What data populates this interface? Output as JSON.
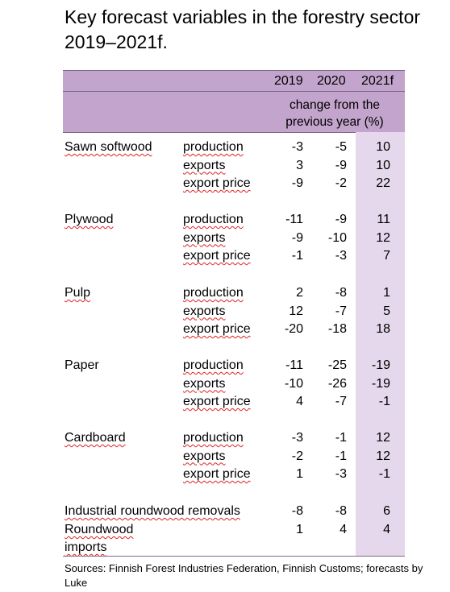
{
  "title": "Key forecast variables in the forestry sector 2019–2021f.",
  "header": {
    "years": [
      "2019",
      "2020",
      "2021f"
    ],
    "note": "change from the previous year (%)"
  },
  "groups": [
    {
      "label": "Sawn softwood",
      "rows": [
        {
          "metric": "production",
          "values": [
            "-3",
            "-5",
            "10"
          ]
        },
        {
          "metric": "exports",
          "values": [
            "3",
            "-9",
            "10"
          ]
        },
        {
          "metric": "export price",
          "values": [
            "-9",
            "-2",
            "22"
          ]
        }
      ]
    },
    {
      "label": "Plywood",
      "rows": [
        {
          "metric": "production",
          "values": [
            "-11",
            "-9",
            "11"
          ]
        },
        {
          "metric": "exports",
          "values": [
            "-9",
            "-10",
            "12"
          ]
        },
        {
          "metric": "export price",
          "values": [
            "-1",
            "-3",
            "7"
          ]
        }
      ]
    },
    {
      "label": "Pulp",
      "rows": [
        {
          "metric": "production",
          "values": [
            "2",
            "-8",
            "1"
          ]
        },
        {
          "metric": "exports",
          "values": [
            "12",
            "-7",
            "5"
          ]
        },
        {
          "metric": "export price",
          "values": [
            "-20",
            "-18",
            "18"
          ]
        }
      ]
    },
    {
      "label": "Paper",
      "rows": [
        {
          "metric": "production",
          "values": [
            "-11",
            "-25",
            "-19"
          ]
        },
        {
          "metric": "exports",
          "values": [
            "-10",
            "-26",
            "-19"
          ]
        },
        {
          "metric": "export price",
          "values": [
            "4",
            "-7",
            "-1"
          ]
        }
      ]
    },
    {
      "label": "Cardboard",
      "rows": [
        {
          "metric": "production",
          "values": [
            "-3",
            "-1",
            "12"
          ]
        },
        {
          "metric": "exports",
          "values": [
            "-2",
            "-1",
            "12"
          ]
        },
        {
          "metric": "export price",
          "values": [
            "1",
            "-3",
            "-1"
          ]
        }
      ]
    }
  ],
  "extra_rows": [
    {
      "label": "Industrial roundwood removals",
      "values": [
        "-8",
        "-8",
        "6"
      ]
    },
    {
      "label": "Roundwood imports",
      "values": [
        "1",
        "4",
        "4"
      ]
    }
  ],
  "sources": "Sources: Finnish Forest Industries Federation, Finnish Customs; forecasts by Luke"
}
